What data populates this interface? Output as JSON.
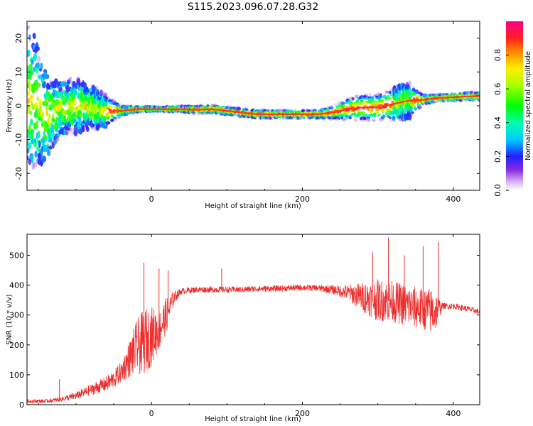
{
  "title": "S115.2023.096.07.28.G32",
  "chart_data": [
    {
      "type": "heatmap",
      "xlabel": "Height of straight line (km)",
      "ylabel": "Frequency (Hz)",
      "xlim": [
        -165,
        435
      ],
      "ylim": [
        -25,
        25
      ],
      "x_ticks": [
        0,
        200,
        400
      ],
      "y_ticks": [
        -20,
        -10,
        0,
        10,
        20
      ],
      "ridge": {
        "x": [
          -160,
          -140,
          -120,
          -100,
          -80,
          -60,
          -40,
          -20,
          0,
          20,
          40,
          60,
          80,
          100,
          120,
          140,
          160,
          180,
          200,
          220,
          240,
          260,
          280,
          300,
          320,
          340,
          360,
          380,
          400,
          420,
          435
        ],
        "freq": [
          2,
          -3,
          -1,
          0,
          -0.5,
          -1.5,
          -1.5,
          -1,
          -1,
          -1,
          -1,
          -1.2,
          -1,
          -1.5,
          -2,
          -2.5,
          -2.5,
          -2.5,
          -2.5,
          -2.5,
          -2,
          -1,
          -0.5,
          -0.5,
          0.5,
          1.5,
          1.8,
          2.3,
          2.5,
          2.8,
          2.8
        ],
        "spread": [
          14,
          8,
          5,
          5,
          4,
          3,
          1,
          0.6,
          0.5,
          0.5,
          0.6,
          0.8,
          0.8,
          0.8,
          0.8,
          0.8,
          0.8,
          0.8,
          0.8,
          0.8,
          1.2,
          2,
          2.5,
          2.5,
          3,
          3.5,
          1,
          0.7,
          0.7,
          0.8,
          0.8
        ]
      },
      "colorbar": {
        "label": "Normalized spectral amplitude",
        "range": [
          0,
          1
        ],
        "ticks": [
          "0.0",
          "0.2",
          "0.4",
          "0.6",
          "0.8"
        ]
      }
    },
    {
      "type": "line",
      "xlabel": "Height of straight line (km)",
      "ylabel": "SNR (10 * v/v)",
      "xlim": [
        -165,
        435
      ],
      "ylim": [
        0,
        570
      ],
      "x_ticks": [
        0,
        200,
        400
      ],
      "y_ticks": [
        0,
        100,
        200,
        300,
        400,
        500
      ],
      "series": [
        {
          "color": "#ee2c2c",
          "envelope_x": [
            -165,
            -140,
            -120,
            -100,
            -80,
            -60,
            -50,
            -40,
            -30,
            -20,
            -10,
            0,
            10,
            20,
            30,
            40,
            60,
            80,
            100,
            120,
            140,
            160,
            180,
            200,
            220,
            240,
            260,
            280,
            300,
            320,
            340,
            360,
            375,
            385,
            400,
            420,
            435
          ],
          "envelope_mean": [
            12,
            12,
            18,
            30,
            50,
            70,
            85,
            110,
            150,
            190,
            210,
            230,
            250,
            300,
            360,
            380,
            385,
            385,
            385,
            385,
            388,
            388,
            390,
            392,
            390,
            385,
            375,
            360,
            350,
            345,
            330,
            320,
            310,
            330,
            330,
            320,
            310
          ],
          "envelope_noise": [
            6,
            6,
            8,
            12,
            18,
            25,
            30,
            35,
            60,
            90,
            110,
            100,
            70,
            60,
            20,
            10,
            10,
            10,
            10,
            10,
            10,
            10,
            10,
            10,
            10,
            15,
            25,
            50,
            70,
            70,
            70,
            70,
            80,
            10,
            10,
            10,
            10
          ],
          "spikes": [
            {
              "x": -122,
              "y": 85
            },
            {
              "x": -10,
              "y": 475
            },
            {
              "x": 10,
              "y": 455
            },
            {
              "x": 22,
              "y": 450
            },
            {
              "x": 93,
              "y": 455
            },
            {
              "x": 293,
              "y": 510
            },
            {
              "x": 314,
              "y": 560
            },
            {
              "x": 335,
              "y": 500
            },
            {
              "x": 360,
              "y": 530
            },
            {
              "x": 380,
              "y": 545
            }
          ]
        }
      ]
    }
  ]
}
